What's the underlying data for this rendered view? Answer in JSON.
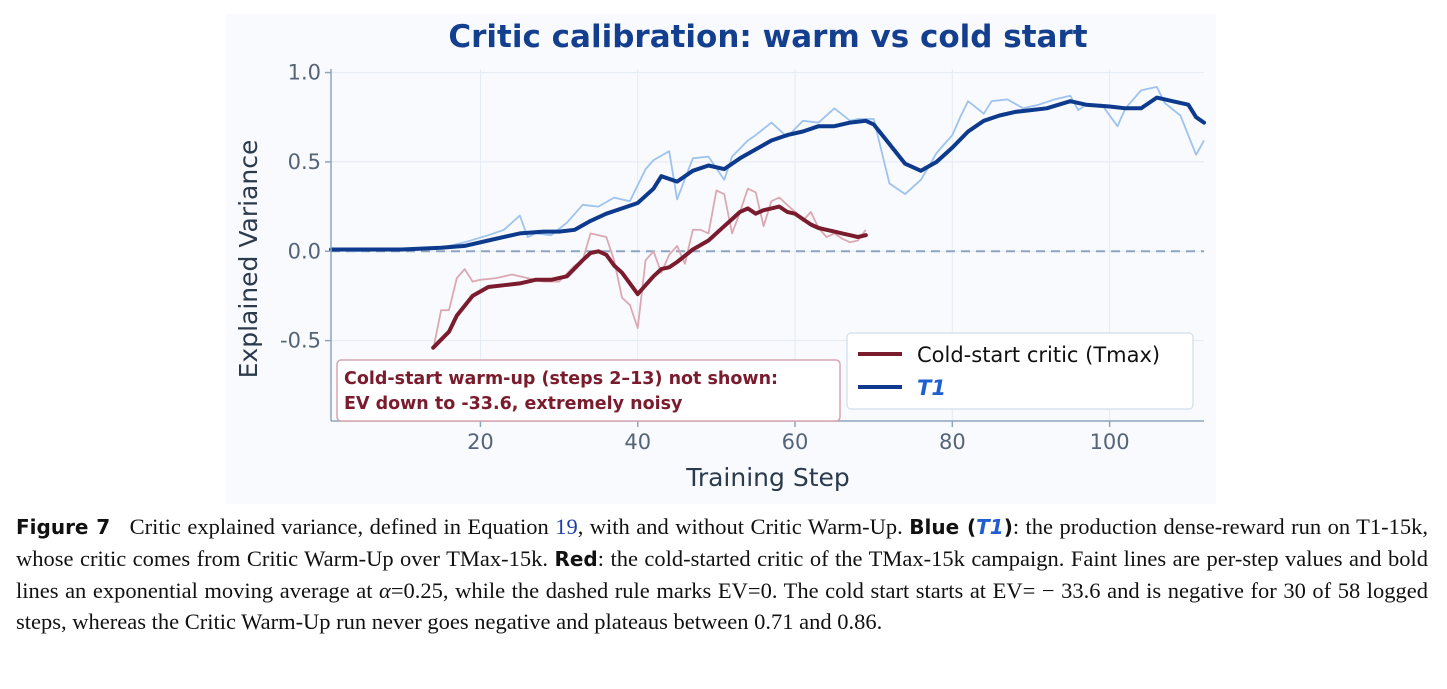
{
  "chart_data": {
    "type": "line",
    "title": "Critic calibration: warm vs cold start",
    "xlabel": "Training Step",
    "ylabel": "Explained Variance",
    "xlim": [
      1,
      112
    ],
    "ylim": [
      -0.95,
      1.02
    ],
    "xticks": [
      20,
      40,
      60,
      80,
      100
    ],
    "xtick_labels": [
      "20",
      "40",
      "60",
      "80",
      "100"
    ],
    "yticks": [
      1.0,
      0.5,
      0.0,
      -0.5
    ],
    "ytick_labels": [
      "1.0",
      "0.5",
      "0.0",
      "-0.5"
    ],
    "grid": true,
    "legend_position": "lower-right",
    "reference_line": {
      "y": 0.0,
      "style": "dashed",
      "color": "#8fa4bf"
    },
    "colors": {
      "t1_bold": "#0d3a8c",
      "t1_faint": "#9ec3ee",
      "cold_bold": "#7a1c2e",
      "cold_faint": "#dba9b3",
      "annotation_border": "#d8a6b0"
    },
    "legend": [
      {
        "label": "Cold-start critic (Tmax)",
        "color": "#7a1c2e"
      },
      {
        "label": "T1",
        "color": "#0d3a8c"
      }
    ],
    "annotation": [
      "Cold-start warm-up (steps 2–13) not shown:",
      "EV down to -33.6, extremely noisy"
    ],
    "series": [
      {
        "name": "T1",
        "raw": {
          "x": [
            1,
            4,
            8,
            12,
            15,
            18,
            21,
            23,
            25,
            26,
            27,
            29,
            31,
            33,
            35,
            37,
            39,
            41,
            42,
            44,
            45,
            47,
            49,
            51,
            52,
            54,
            55,
            57,
            59,
            61,
            63,
            65,
            67,
            68,
            70,
            72,
            74,
            76,
            78,
            80,
            81,
            82,
            84,
            85,
            87,
            89,
            91,
            93,
            95,
            96,
            97,
            99,
            101,
            102,
            104,
            106,
            107,
            109,
            111,
            112
          ],
          "y": [
            0.01,
            0.0,
            0.01,
            0.01,
            0.02,
            0.05,
            0.09,
            0.12,
            0.2,
            0.08,
            0.1,
            0.09,
            0.16,
            0.26,
            0.25,
            0.3,
            0.28,
            0.46,
            0.51,
            0.56,
            0.29,
            0.52,
            0.53,
            0.4,
            0.53,
            0.62,
            0.65,
            0.72,
            0.64,
            0.73,
            0.72,
            0.8,
            0.73,
            0.74,
            0.74,
            0.38,
            0.32,
            0.4,
            0.55,
            0.65,
            0.75,
            0.84,
            0.77,
            0.84,
            0.85,
            0.8,
            0.82,
            0.85,
            0.87,
            0.79,
            0.82,
            0.82,
            0.7,
            0.8,
            0.9,
            0.92,
            0.83,
            0.76,
            0.54,
            0.62
          ]
        },
        "ema": {
          "x": [
            1,
            5,
            10,
            15,
            18,
            21,
            25,
            28,
            30,
            32,
            34,
            36,
            38,
            40,
            42,
            43,
            45,
            47,
            49,
            51,
            53,
            55,
            57,
            59,
            61,
            63,
            65,
            67,
            69,
            70,
            72,
            74,
            76,
            78,
            80,
            82,
            84,
            86,
            88,
            90,
            92,
            95,
            97,
            100,
            102,
            104,
            106,
            108,
            110,
            111,
            112
          ],
          "y": [
            0.01,
            0.01,
            0.01,
            0.02,
            0.03,
            0.06,
            0.1,
            0.11,
            0.11,
            0.12,
            0.17,
            0.21,
            0.24,
            0.27,
            0.35,
            0.42,
            0.39,
            0.45,
            0.48,
            0.46,
            0.52,
            0.57,
            0.62,
            0.65,
            0.67,
            0.7,
            0.7,
            0.72,
            0.73,
            0.71,
            0.6,
            0.49,
            0.45,
            0.5,
            0.58,
            0.67,
            0.73,
            0.76,
            0.78,
            0.79,
            0.8,
            0.84,
            0.82,
            0.81,
            0.8,
            0.8,
            0.86,
            0.84,
            0.82,
            0.75,
            0.72
          ]
        }
      },
      {
        "name": "Cold-start critic (Tmax)",
        "raw": {
          "x": [
            14,
            15,
            16,
            17,
            18,
            19,
            20,
            22,
            24,
            26,
            28,
            30,
            32,
            33,
            34,
            36,
            37,
            38,
            39,
            40,
            41,
            42,
            43,
            44,
            45,
            46,
            47,
            48,
            49,
            50,
            51,
            52,
            53,
            54,
            55,
            56,
            57,
            58,
            59,
            60,
            61,
            62,
            63,
            64,
            65,
            66,
            67,
            68,
            69
          ],
          "y": [
            -0.55,
            -0.33,
            -0.33,
            -0.15,
            -0.1,
            -0.17,
            -0.16,
            -0.15,
            -0.13,
            -0.15,
            -0.17,
            -0.17,
            -0.08,
            -0.05,
            0.1,
            0.08,
            -0.05,
            -0.26,
            -0.3,
            -0.43,
            -0.05,
            0.0,
            -0.12,
            -0.02,
            0.03,
            -0.07,
            0.12,
            0.12,
            0.1,
            0.34,
            0.32,
            0.1,
            0.22,
            0.35,
            0.33,
            0.14,
            0.28,
            0.3,
            0.26,
            0.22,
            0.17,
            0.22,
            0.13,
            0.08,
            0.1,
            0.07,
            0.05,
            0.06,
            0.12
          ]
        },
        "ema": {
          "x": [
            14,
            16,
            17,
            19,
            21,
            23,
            25,
            27,
            29,
            31,
            33,
            34,
            35,
            36,
            37,
            38,
            39,
            40,
            41,
            42,
            43,
            44,
            45,
            47,
            49,
            51,
            52,
            53,
            54,
            55,
            56,
            57,
            58,
            59,
            60,
            61,
            62,
            63,
            64,
            65,
            66,
            67,
            68,
            69
          ],
          "y": [
            -0.54,
            -0.45,
            -0.36,
            -0.25,
            -0.2,
            -0.19,
            -0.18,
            -0.16,
            -0.16,
            -0.14,
            -0.05,
            -0.01,
            0.0,
            -0.02,
            -0.08,
            -0.12,
            -0.18,
            -0.24,
            -0.19,
            -0.14,
            -0.1,
            -0.09,
            -0.06,
            0.01,
            0.06,
            0.14,
            0.18,
            0.22,
            0.24,
            0.21,
            0.23,
            0.24,
            0.25,
            0.22,
            0.21,
            0.18,
            0.15,
            0.13,
            0.12,
            0.11,
            0.1,
            0.09,
            0.08,
            0.09
          ]
        }
      }
    ]
  },
  "caption": {
    "figure_label": "Figure 7",
    "p1": "Critic explained variance, defined in Equation ",
    "eq_ref": "19",
    "p2": ", with and without Critic Warm-Up. ",
    "blue_label": "Blue (",
    "blue_t1": "T1",
    "blue_close": ")",
    "p3": ": the production dense-reward run on T1-15k, whose critic comes from Critic Warm-Up over TMax-15k. ",
    "red_label": "Red",
    "p4": ": the cold-started critic of the TMax-15k campaign. Faint lines are per-step values and bold lines an exponential moving average at ",
    "alpha_sym": "α",
    "p5": "=0.25, while the dashed rule marks EV=0. The cold start starts at EV=",
    "ev_value": " − 33.6",
    "p6": " and is negative for 30 of 58 logged steps, whereas the Critic Warm-Up run never goes negative and plateaus between 0.71 and 0.86."
  }
}
